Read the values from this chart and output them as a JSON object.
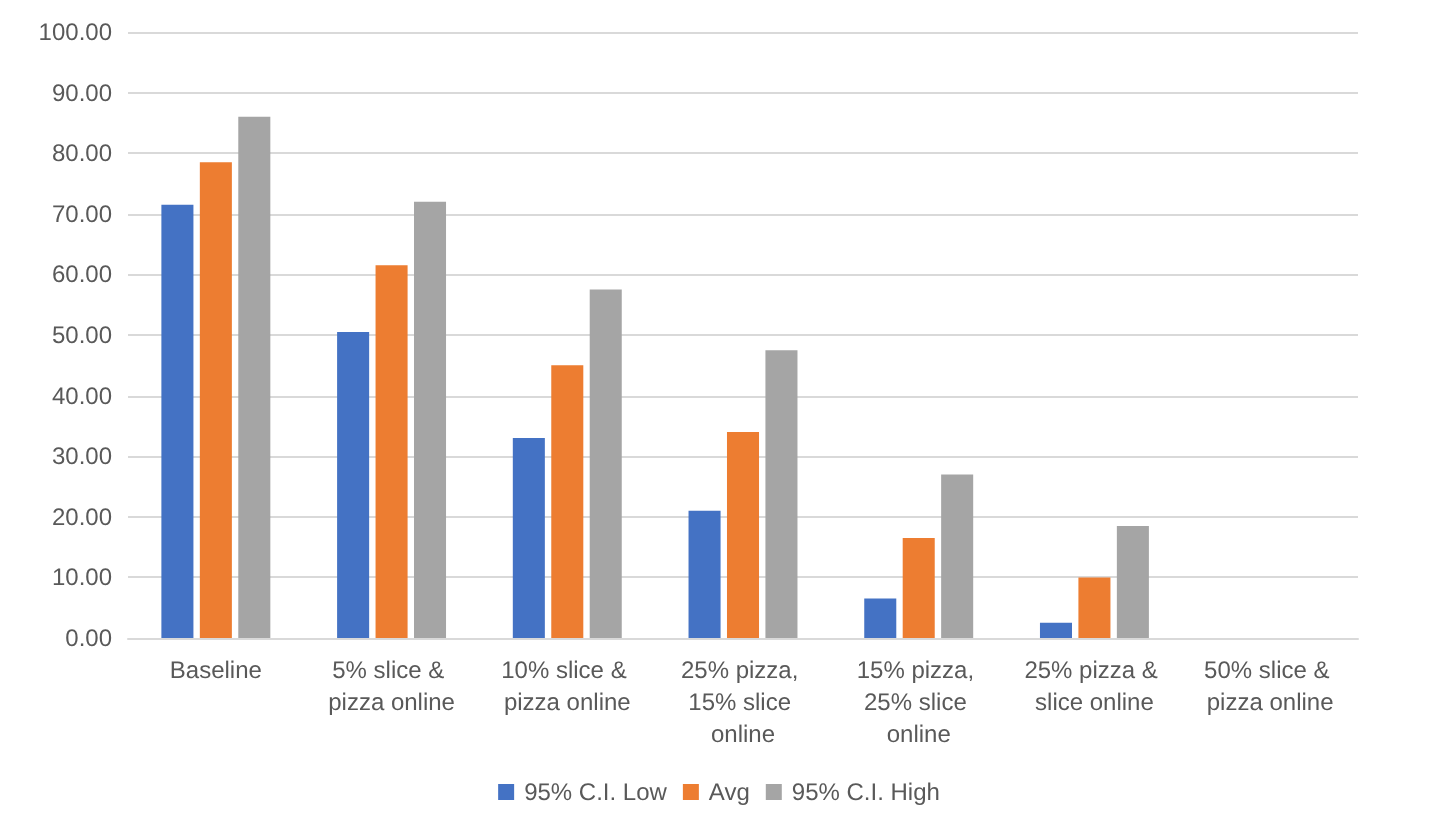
{
  "chart_data": {
    "type": "bar",
    "categories": [
      "Baseline",
      "5% slice & pizza online",
      "10% slice & pizza online",
      "25% pizza, 15% slice online",
      "15% pizza, 25% slice online",
      "25% pizza & slice online",
      "50% slice & pizza online"
    ],
    "series": [
      {
        "name": "95% C.I. Low",
        "color": "#4472c4",
        "values": [
          71.5,
          50.5,
          33,
          21,
          6.5,
          2.5,
          0
        ]
      },
      {
        "name": "Avg",
        "color": "#ed7d31",
        "values": [
          78.5,
          61.5,
          45,
          34,
          16.5,
          10,
          0
        ]
      },
      {
        "name": "95% C.I. High",
        "color": "#a5a5a5",
        "values": [
          86,
          72,
          57.5,
          47.5,
          27,
          18.5,
          0
        ]
      }
    ],
    "ylim": [
      0,
      100
    ],
    "yticks": [
      {
        "value": 0,
        "label": "0.00"
      },
      {
        "value": 10,
        "label": "10.00"
      },
      {
        "value": 20,
        "label": "20.00"
      },
      {
        "value": 30,
        "label": "30.00"
      },
      {
        "value": 40,
        "label": "40.00"
      },
      {
        "value": 50,
        "label": "50.00"
      },
      {
        "value": 60,
        "label": "60.00"
      },
      {
        "value": 70,
        "label": "70.00"
      },
      {
        "value": 80,
        "label": "80.00"
      },
      {
        "value": 90,
        "label": "90.00"
      },
      {
        "value": 100,
        "label": "100.00"
      }
    ],
    "grid": "y",
    "legend": "bottom"
  }
}
